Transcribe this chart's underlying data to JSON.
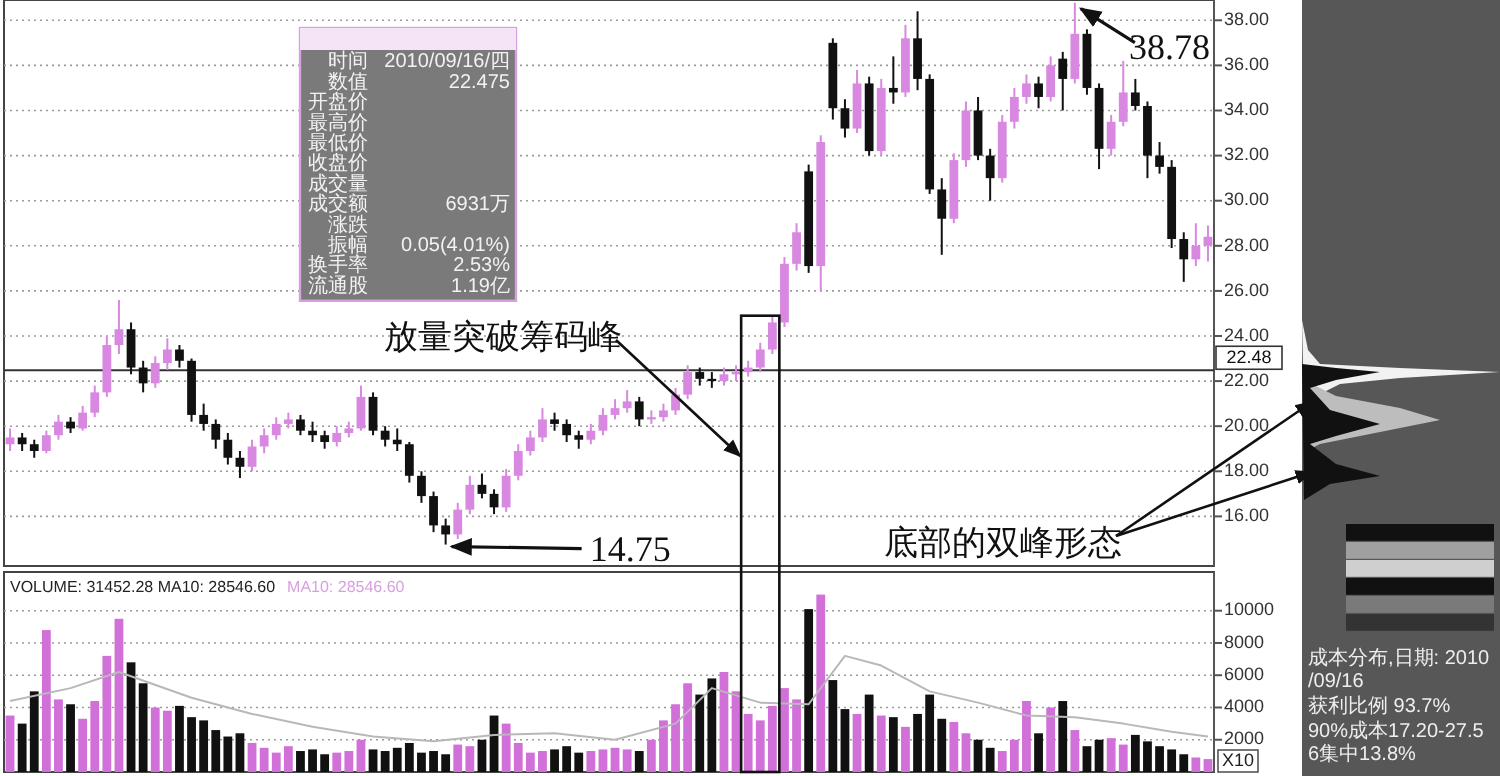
{
  "chart_data": [
    {
      "type": "candlestick",
      "categories": [
        null,
        null,
        null,
        null,
        null,
        null,
        null,
        null,
        null,
        null,
        null,
        null,
        null,
        null,
        null,
        null,
        null,
        null,
        null,
        null,
        null,
        null,
        null,
        null,
        null,
        null,
        null,
        null,
        null,
        null,
        null,
        null,
        null,
        null,
        null,
        null,
        null,
        null,
        null,
        null,
        null,
        null,
        null,
        null,
        null,
        null,
        null,
        null,
        null,
        null,
        null,
        null,
        null,
        null,
        null,
        null,
        null,
        null,
        null,
        null,
        null,
        null,
        null,
        null,
        null,
        null,
        null,
        null,
        null,
        null,
        null,
        null,
        null,
        null,
        null,
        null,
        null,
        null,
        null,
        null,
        null,
        null,
        null,
        null,
        null,
        null,
        null,
        null,
        null,
        null,
        null,
        null,
        null,
        null,
        null,
        null,
        null,
        null,
        null,
        null
      ],
      "ohlc": [
        [
          19.2,
          19.9,
          18.9,
          19.5
        ],
        [
          19.5,
          19.7,
          18.9,
          19.2
        ],
        [
          19.2,
          19.4,
          18.6,
          18.9
        ],
        [
          18.9,
          19.8,
          18.8,
          19.6
        ],
        [
          19.6,
          20.5,
          19.4,
          20.2
        ],
        [
          20.2,
          20.4,
          19.7,
          19.9
        ],
        [
          19.9,
          20.9,
          19.8,
          20.6
        ],
        [
          20.6,
          21.8,
          20.4,
          21.5
        ],
        [
          21.5,
          24.0,
          21.3,
          23.6
        ],
        [
          23.6,
          25.6,
          23.2,
          24.3
        ],
        [
          24.3,
          24.6,
          22.3,
          22.6
        ],
        [
          22.6,
          22.9,
          21.5,
          21.9
        ],
        [
          21.9,
          23.1,
          21.7,
          22.8
        ],
        [
          22.8,
          23.9,
          22.5,
          23.4
        ],
        [
          23.4,
          23.6,
          22.6,
          22.9
        ],
        [
          22.9,
          23.0,
          20.2,
          20.5
        ],
        [
          20.5,
          21.0,
          19.8,
          20.1
        ],
        [
          20.1,
          20.3,
          19.0,
          19.4
        ],
        [
          19.4,
          19.7,
          18.3,
          18.6
        ],
        [
          18.6,
          18.9,
          17.7,
          18.2
        ],
        [
          18.2,
          19.4,
          18.0,
          19.1
        ],
        [
          19.1,
          19.9,
          18.8,
          19.6
        ],
        [
          19.6,
          20.4,
          19.4,
          20.1
        ],
        [
          20.1,
          20.6,
          19.9,
          20.3
        ],
        [
          20.3,
          20.5,
          19.6,
          19.8
        ],
        [
          19.8,
          20.2,
          19.3,
          19.6
        ],
        [
          19.6,
          19.8,
          19.0,
          19.3
        ],
        [
          19.3,
          20.0,
          19.1,
          19.7
        ],
        [
          19.7,
          20.2,
          19.5,
          19.9
        ],
        [
          19.9,
          21.8,
          19.8,
          21.3
        ],
        [
          21.3,
          21.5,
          19.6,
          19.8
        ],
        [
          19.8,
          20.0,
          19.1,
          19.4
        ],
        [
          19.4,
          19.9,
          18.9,
          19.2
        ],
        [
          19.2,
          19.3,
          17.5,
          17.8
        ],
        [
          17.8,
          18.0,
          16.6,
          16.9
        ],
        [
          16.9,
          17.1,
          15.3,
          15.6
        ],
        [
          15.6,
          15.9,
          14.75,
          15.2
        ],
        [
          15.2,
          16.6,
          15.0,
          16.3
        ],
        [
          16.3,
          17.8,
          16.1,
          17.4
        ],
        [
          17.4,
          17.9,
          16.8,
          17.0
        ],
        [
          17.0,
          17.2,
          16.1,
          16.4
        ],
        [
          16.4,
          18.1,
          16.2,
          17.8
        ],
        [
          17.8,
          19.2,
          17.6,
          18.9
        ],
        [
          18.9,
          19.8,
          18.7,
          19.5
        ],
        [
          19.5,
          20.8,
          19.3,
          20.3
        ],
        [
          20.3,
          20.6,
          19.8,
          20.1
        ],
        [
          20.1,
          20.3,
          19.3,
          19.6
        ],
        [
          19.6,
          19.8,
          19.0,
          19.4
        ],
        [
          19.4,
          20.1,
          19.2,
          19.8
        ],
        [
          19.8,
          20.8,
          19.6,
          20.5
        ],
        [
          20.5,
          21.2,
          20.3,
          20.8
        ],
        [
          20.8,
          21.6,
          20.6,
          21.1
        ],
        [
          21.1,
          21.3,
          20.0,
          20.3
        ],
        [
          20.3,
          20.7,
          20.1,
          20.4
        ],
        [
          20.4,
          21.0,
          20.2,
          20.7
        ],
        [
          20.7,
          21.7,
          20.5,
          21.4
        ],
        [
          21.4,
          22.7,
          21.2,
          22.4
        ],
        [
          22.4,
          22.6,
          21.8,
          22.1
        ],
        [
          22.1,
          22.4,
          21.7,
          22.0
        ],
        [
          22.0,
          22.6,
          21.8,
          22.3
        ],
        [
          22.3,
          22.7,
          22.0,
          22.4
        ],
        [
          22.4,
          22.9,
          22.2,
          22.6
        ],
        [
          22.6,
          23.7,
          22.4,
          23.4
        ],
        [
          23.4,
          24.9,
          23.2,
          24.6
        ],
        [
          24.6,
          27.5,
          24.4,
          27.2
        ],
        [
          27.2,
          29.0,
          26.9,
          28.6
        ],
        [
          31.3,
          31.6,
          26.8,
          27.1
        ],
        [
          27.1,
          32.9,
          26.0,
          32.6
        ],
        [
          37.0,
          37.2,
          33.6,
          34.1
        ],
        [
          34.1,
          34.5,
          32.8,
          33.2
        ],
        [
          33.2,
          35.8,
          33.0,
          35.2
        ],
        [
          35.2,
          35.5,
          32.0,
          32.2
        ],
        [
          32.2,
          35.4,
          32.0,
          35.0
        ],
        [
          35.0,
          36.4,
          34.3,
          34.8
        ],
        [
          34.8,
          37.8,
          34.6,
          37.2
        ],
        [
          37.2,
          38.4,
          34.9,
          35.4
        ],
        [
          35.4,
          35.6,
          30.3,
          30.5
        ],
        [
          30.5,
          31.0,
          27.6,
          29.2
        ],
        [
          29.2,
          32.1,
          29.0,
          31.8
        ],
        [
          31.8,
          34.4,
          31.5,
          34.0
        ],
        [
          34.0,
          34.6,
          31.8,
          32.0
        ],
        [
          32.0,
          32.3,
          30.0,
          31.0
        ],
        [
          31.0,
          33.8,
          30.8,
          33.5
        ],
        [
          33.5,
          35.0,
          33.2,
          34.6
        ],
        [
          34.6,
          35.6,
          34.3,
          35.2
        ],
        [
          35.2,
          35.5,
          34.1,
          34.6
        ],
        [
          34.6,
          36.4,
          34.4,
          36.0
        ],
        [
          36.3,
          36.6,
          34.0,
          35.4
        ],
        [
          35.4,
          38.78,
          35.2,
          37.4
        ],
        [
          37.4,
          37.6,
          34.7,
          35.0
        ],
        [
          35.0,
          35.2,
          31.4,
          32.3
        ],
        [
          32.3,
          33.8,
          32.0,
          33.5
        ],
        [
          33.5,
          36.2,
          33.3,
          34.8
        ],
        [
          34.8,
          35.4,
          34.0,
          34.2
        ],
        [
          34.2,
          34.4,
          31.0,
          32.0
        ],
        [
          32.0,
          32.6,
          31.2,
          31.5
        ],
        [
          31.5,
          31.8,
          27.9,
          28.3
        ],
        [
          28.3,
          28.6,
          26.4,
          27.4
        ],
        [
          27.4,
          29.0,
          27.1,
          28.0
        ],
        [
          28.0,
          28.9,
          27.3,
          28.4
        ]
      ],
      "colors": [
        "#d888e0",
        "#111111",
        "#111111",
        "#d888e0",
        "#d888e0",
        "#111111",
        "#d888e0",
        "#d888e0",
        "#d888e0",
        "#d888e0",
        "#111111",
        "#111111",
        "#d888e0",
        "#d888e0",
        "#111111",
        "#111111",
        "#111111",
        "#111111",
        "#111111",
        "#111111",
        "#d888e0",
        "#d888e0",
        "#d888e0",
        "#d888e0",
        "#111111",
        "#111111",
        "#111111",
        "#d888e0",
        "#d888e0",
        "#d888e0",
        "#111111",
        "#111111",
        "#111111",
        "#111111",
        "#111111",
        "#111111",
        "#111111",
        "#d888e0",
        "#d888e0",
        "#111111",
        "#111111",
        "#d888e0",
        "#d888e0",
        "#d888e0",
        "#d888e0",
        "#111111",
        "#111111",
        "#111111",
        "#d888e0",
        "#d888e0",
        "#d888e0",
        "#d888e0",
        "#111111",
        "#d888e0",
        "#d888e0",
        "#d888e0",
        "#d888e0",
        "#111111",
        "#111111",
        "#d888e0",
        "#d888e0",
        "#d888e0",
        "#d888e0",
        "#d888e0",
        "#d888e0",
        "#d888e0",
        "#111111",
        "#d888e0",
        "#111111",
        "#111111",
        "#d888e0",
        "#111111",
        "#d888e0",
        "#111111",
        "#d888e0",
        "#111111",
        "#111111",
        "#111111",
        "#d888e0",
        "#d888e0",
        "#111111",
        "#111111",
        "#d888e0",
        "#d888e0",
        "#d888e0",
        "#111111",
        "#d888e0",
        "#111111",
        "#d888e0",
        "#111111",
        "#111111",
        "#d888e0",
        "#d888e0",
        "#111111",
        "#111111",
        "#111111",
        "#111111",
        "#111111",
        "#d888e0",
        "#d888e0"
      ],
      "ylim": [
        13.8,
        38.9
      ],
      "yticks": [
        {
          "value": 16,
          "label": "16.00"
        },
        {
          "value": 18,
          "label": "18.00"
        },
        {
          "value": 20,
          "label": "20.00"
        },
        {
          "value": 22,
          "label": "22.00"
        },
        {
          "value": 24,
          "label": "24.00"
        },
        {
          "value": 26,
          "label": "26.00"
        },
        {
          "value": 28,
          "label": "28.00"
        },
        {
          "value": 30,
          "label": "30.00"
        },
        {
          "value": 32,
          "label": "32.00"
        },
        {
          "value": 34,
          "label": "34.00"
        },
        {
          "value": 36,
          "label": "36.00"
        },
        {
          "value": 38,
          "label": "38.00"
        }
      ],
      "grid": "y",
      "ref_lines": [
        {
          "axis": "y",
          "value": 22.48,
          "label": "22.48",
          "color": "#333333"
        }
      ],
      "annotations": [
        "14.75",
        "38.78",
        "放量突破筹码峰",
        "底部的双峰形态"
      ]
    },
    {
      "type": "bar",
      "categories": [
        null,
        null,
        null,
        null,
        null,
        null,
        null,
        null,
        null,
        null,
        null,
        null,
        null,
        null,
        null,
        null,
        null,
        null,
        null,
        null,
        null,
        null,
        null,
        null,
        null,
        null,
        null,
        null,
        null,
        null,
        null,
        null,
        null,
        null,
        null,
        null,
        null,
        null,
        null,
        null,
        null,
        null,
        null,
        null,
        null,
        null,
        null,
        null,
        null,
        null,
        null,
        null,
        null,
        null,
        null,
        null,
        null,
        null,
        null,
        null,
        null,
        null,
        null,
        null,
        null,
        null,
        null,
        null,
        null,
        null,
        null,
        null,
        null,
        null,
        null,
        null,
        null,
        null,
        null,
        null,
        null,
        null,
        null,
        null,
        null,
        null,
        null,
        null,
        null,
        null,
        null,
        null,
        null,
        null,
        null,
        null,
        null,
        null,
        null,
        null
      ],
      "series": [
        {
          "type": "bar",
          "values": [
            3500,
            3000,
            5000,
            8800,
            4500,
            4200,
            3300,
            4400,
            7200,
            9500,
            6800,
            5500,
            4000,
            3800,
            4100,
            3400,
            3200,
            2600,
            2200,
            2400,
            1800,
            1500,
            1200,
            1600,
            1300,
            1400,
            1100,
            1200,
            1300,
            2000,
            1400,
            1300,
            1500,
            1800,
            1200,
            1300,
            1100,
            1700,
            1600,
            2000,
            3500,
            3000,
            1800,
            1200,
            1300,
            1400,
            1600,
            1200,
            1300,
            1400,
            1500,
            1400,
            1300,
            2000,
            3200,
            4200,
            5500,
            4800,
            5800,
            6200,
            5000,
            3600,
            3200,
            4100,
            5200,
            4500,
            10100,
            11000,
            5700,
            3900,
            3600,
            4800,
            3500,
            3400,
            2800,
            3600,
            4800,
            3300,
            3100,
            2400,
            2000,
            1500,
            1300,
            2000,
            4400,
            2400,
            4000,
            4400,
            2600,
            1600,
            2000,
            2100,
            1700,
            2300,
            1900,
            1600,
            1400,
            1100,
            900,
            800
          ],
          "colors": [
            "#d070d8",
            "#111111",
            "#111111",
            "#d070d8",
            "#d070d8",
            "#111111",
            "#d070d8",
            "#d070d8",
            "#d070d8",
            "#d070d8",
            "#111111",
            "#111111",
            "#d070d8",
            "#d070d8",
            "#111111",
            "#111111",
            "#111111",
            "#111111",
            "#111111",
            "#111111",
            "#d070d8",
            "#d070d8",
            "#d070d8",
            "#d070d8",
            "#111111",
            "#111111",
            "#111111",
            "#d070d8",
            "#d070d8",
            "#d070d8",
            "#111111",
            "#111111",
            "#111111",
            "#111111",
            "#111111",
            "#111111",
            "#111111",
            "#d070d8",
            "#d070d8",
            "#111111",
            "#111111",
            "#d070d8",
            "#d070d8",
            "#d070d8",
            "#d070d8",
            "#111111",
            "#111111",
            "#111111",
            "#d070d8",
            "#d070d8",
            "#d070d8",
            "#d070d8",
            "#111111",
            "#d070d8",
            "#d070d8",
            "#d070d8",
            "#d070d8",
            "#111111",
            "#111111",
            "#d070d8",
            "#d070d8",
            "#d070d8",
            "#d070d8",
            "#d070d8",
            "#d070d8",
            "#d070d8",
            "#111111",
            "#d070d8",
            "#111111",
            "#111111",
            "#d070d8",
            "#111111",
            "#d070d8",
            "#111111",
            "#d070d8",
            "#111111",
            "#111111",
            "#111111",
            "#d070d8",
            "#d070d8",
            "#111111",
            "#111111",
            "#d070d8",
            "#d070d8",
            "#d070d8",
            "#111111",
            "#d070d8",
            "#111111",
            "#d070d8",
            "#111111",
            "#111111",
            "#d070d8",
            "#d070d8",
            "#111111",
            "#111111",
            "#111111",
            "#111111",
            "#111111",
            "#d070d8",
            "#d070d8"
          ]
        },
        {
          "type": "line",
          "color": "#b8b8b8",
          "values": [
            4400,
            null,
            null,
            null,
            null,
            5200,
            null,
            null,
            null,
            6200,
            null,
            null,
            null,
            null,
            null,
            4600,
            null,
            null,
            null,
            null,
            3600,
            null,
            null,
            null,
            null,
            2800,
            null,
            null,
            null,
            null,
            2200,
            null,
            null,
            null,
            null,
            1900,
            null,
            null,
            null,
            null,
            2300,
            null,
            null,
            null,
            null,
            2400,
            null,
            null,
            null,
            null,
            2000,
            null,
            null,
            null,
            null,
            3000,
            null,
            null,
            5200,
            null,
            null,
            null,
            4300,
            null,
            null,
            null,
            4200,
            null,
            null,
            7200,
            null,
            null,
            6600,
            null,
            null,
            null,
            5000,
            null,
            null,
            null,
            4300,
            null,
            null,
            null,
            3500,
            null,
            null,
            null,
            3400,
            null,
            null,
            null,
            3000,
            null,
            null,
            null,
            2500,
            null,
            null,
            2200
          ]
        }
      ],
      "ylim": [
        0,
        12400
      ],
      "yticks": [
        2000,
        4000,
        6000,
        8000,
        10000
      ],
      "grid": "y",
      "annotations": [
        "VOLUME: 31452.28  MA10: 28546.60",
        "MA10: 28546.60",
        "X10"
      ]
    },
    {
      "type": "other",
      "categories": [
        "时间",
        "数值",
        "开盘价",
        "最高价",
        "最低价",
        "收盘价",
        "成交量",
        "成交额",
        "涨跌",
        "振幅",
        "换手率",
        "流通股"
      ],
      "value_labels": [
        "2010/09/16/四",
        "22.475",
        null,
        null,
        null,
        null,
        null,
        "6931万",
        null,
        "0.05(4.01%)",
        "2.53%",
        "1.19亿"
      ]
    },
    {
      "type": "other",
      "annotations": [
        "成本分布,日期: 2010/09/16",
        "获利比例  93.7%",
        "90%成本17.20-27.56集中13.8%"
      ]
    }
  ]
}
